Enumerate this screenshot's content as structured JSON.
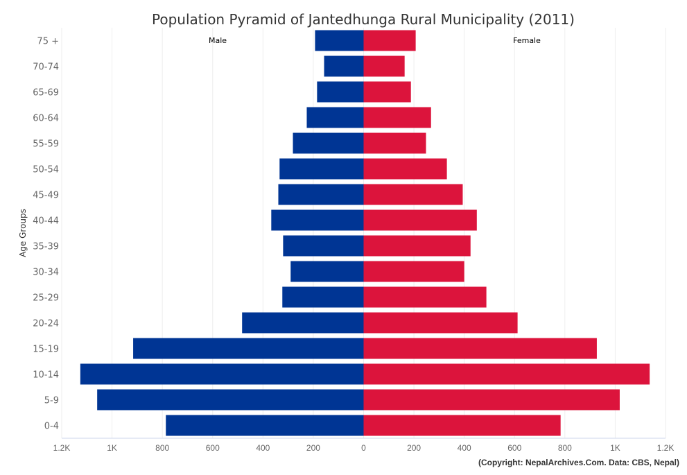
{
  "chart_data": {
    "type": "bar",
    "orientation": "horizontal-pyramid",
    "title": "Population Pyramid of Jantedhunga Rural Municipality (2011)",
    "ylabel": "Age Groups",
    "categories": [
      "75 +",
      "70-74",
      "65-69",
      "60-64",
      "55-59",
      "50-54",
      "45-49",
      "40-44",
      "35-39",
      "30-34",
      "25-29",
      "20-24",
      "15-19",
      "10-14",
      "5-9",
      "0-4"
    ],
    "series": [
      {
        "name": "Male",
        "color": "#003594",
        "values": [
          193,
          157,
          185,
          226,
          281,
          334,
          339,
          367,
          320,
          290,
          323,
          483,
          916,
          1126,
          1059,
          786
        ]
      },
      {
        "name": "Female",
        "color": "#DC143C",
        "values": [
          207,
          163,
          188,
          268,
          248,
          331,
          394,
          450,
          425,
          400,
          488,
          612,
          927,
          1137,
          1018,
          783
        ]
      }
    ],
    "xlim": [
      -1200,
      1200
    ],
    "xticks": [
      -1200,
      -1000,
      -800,
      -600,
      -400,
      -200,
      0,
      200,
      400,
      600,
      800,
      1000,
      1200
    ],
    "xtick_labels": [
      "1.2K",
      "1K",
      "800",
      "600",
      "400",
      "200",
      "0",
      "200",
      "400",
      "600",
      "800",
      "1K",
      "1.2K"
    ],
    "grid": true,
    "credit": "(Copyright: NepalArchives.Com. Data: CBS, Nepal)"
  }
}
